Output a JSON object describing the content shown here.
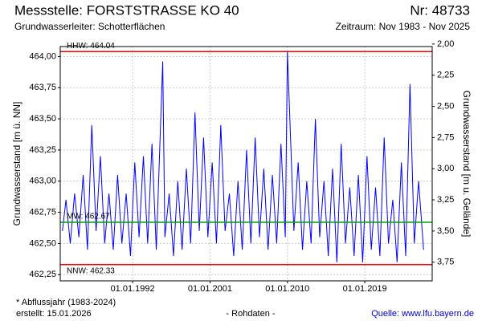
{
  "chart_data": {
    "type": "line",
    "title": "Messstelle: FORSTSTRASSE KO 40",
    "number": "Nr: 48733",
    "aquifer": "Grundwasserleiter:  Schotterflächen",
    "period": "Zeitraum: Nov 1983 - Nov 2025",
    "ylabel": "Grundwasserstand [m ü. NN]",
    "y2label": "Grundwasserstand [m u. Gelände]",
    "xlim": [
      "01.08.1983",
      "01.11.2026"
    ],
    "ylim": [
      462.2,
      464.08
    ],
    "y2lim": [
      3.9,
      2.02
    ],
    "xticks": [
      "01.01.1992",
      "01.01.2001",
      "01.01.2010",
      "01.01.2019"
    ],
    "yticks": [
      {
        "value": 462.25,
        "label": "462,25"
      },
      {
        "value": 462.5,
        "label": "462,50"
      },
      {
        "value": 462.75,
        "label": "462,75"
      },
      {
        "value": 463.0,
        "label": "463,00"
      },
      {
        "value": 463.25,
        "label": "463,25"
      },
      {
        "value": 463.5,
        "label": "463,50"
      },
      {
        "value": 463.75,
        "label": "463,75"
      },
      {
        "value": 464.0,
        "label": "464,00"
      }
    ],
    "y2ticks": [
      {
        "value": 2.0,
        "label": "2,00"
      },
      {
        "value": 2.25,
        "label": "2,25"
      },
      {
        "value": 2.5,
        "label": "2,50"
      },
      {
        "value": 2.75,
        "label": "2,75"
      },
      {
        "value": 3.0,
        "label": "3,00"
      },
      {
        "value": 3.25,
        "label": "3,25"
      },
      {
        "value": 3.5,
        "label": "3,50"
      },
      {
        "value": 3.75,
        "label": "3,75"
      }
    ],
    "grid": true,
    "reference_lines": [
      {
        "label": "HHW: 464.04",
        "value": 464.04,
        "color": "#ff0000"
      },
      {
        "label": "MW: 462.67",
        "value": 462.67,
        "color": "#00a000"
      },
      {
        "label": "NNW: 462.33",
        "value": 462.33,
        "color": "#ff0000"
      }
    ],
    "x": [
      "01.11.1983",
      "01.04.1984",
      "01.10.1984",
      "01.04.1985",
      "01.10.1985",
      "01.04.1986",
      "01.10.1986",
      "01.04.1987",
      "01.10.1987",
      "01.04.1988",
      "01.10.1988",
      "01.04.1989",
      "01.10.1989",
      "01.04.1990",
      "01.10.1990",
      "01.04.1991",
      "01.10.1991",
      "01.04.1992",
      "01.10.1992",
      "01.04.1993",
      "01.10.1993",
      "01.04.1994",
      "01.10.1994",
      "01.07.1995",
      "01.10.1995",
      "01.04.1996",
      "01.10.1996",
      "01.04.1997",
      "01.10.1997",
      "01.04.1998",
      "01.10.1998",
      "01.04.1999",
      "01.10.1999",
      "01.04.2000",
      "01.10.2000",
      "01.04.2001",
      "01.10.2001",
      "01.04.2002",
      "01.10.2002",
      "01.04.2003",
      "01.10.2003",
      "01.04.2004",
      "01.10.2004",
      "01.04.2005",
      "01.10.2005",
      "01.04.2006",
      "01.10.2006",
      "01.04.2007",
      "01.10.2007",
      "01.04.2008",
      "01.10.2008",
      "01.04.2009",
      "01.10.2009",
      "01.01.2010",
      "01.10.2010",
      "01.04.2011",
      "01.10.2011",
      "01.04.2012",
      "01.10.2012",
      "01.04.2013",
      "01.10.2013",
      "01.04.2014",
      "01.10.2014",
      "01.04.2015",
      "01.10.2015",
      "01.04.2016",
      "01.10.2016",
      "01.04.2017",
      "01.10.2017",
      "01.04.2018",
      "01.10.2018",
      "01.04.2019",
      "01.10.2019",
      "01.04.2020",
      "01.10.2020",
      "01.04.2021",
      "01.10.2021",
      "01.04.2022",
      "01.10.2022",
      "01.04.2023",
      "01.10.2023",
      "01.04.2024",
      "01.10.2024",
      "01.04.2025",
      "01.11.2025"
    ],
    "series": [
      {
        "name": "Rohdaten",
        "color": "#0000ff",
        "values": [
          462.6,
          462.85,
          462.5,
          462.9,
          462.55,
          463.05,
          462.45,
          463.45,
          462.6,
          463.2,
          462.5,
          462.9,
          462.45,
          463.05,
          462.5,
          462.9,
          462.4,
          463.15,
          462.55,
          463.2,
          462.5,
          463.3,
          462.45,
          463.96,
          462.55,
          462.9,
          462.4,
          463.0,
          462.45,
          463.1,
          462.5,
          463.55,
          462.6,
          463.35,
          462.55,
          463.15,
          462.5,
          463.45,
          462.6,
          462.9,
          462.4,
          463.0,
          462.45,
          463.25,
          462.5,
          463.35,
          462.55,
          463.1,
          462.45,
          463.05,
          462.5,
          463.3,
          462.55,
          464.04,
          462.6,
          463.15,
          462.45,
          463.0,
          462.5,
          463.5,
          462.55,
          463.0,
          462.4,
          463.1,
          462.35,
          463.3,
          462.5,
          462.95,
          462.4,
          463.05,
          462.35,
          463.2,
          462.45,
          462.95,
          462.4,
          463.35,
          462.5,
          462.85,
          462.35,
          463.15,
          462.4,
          463.78,
          462.5,
          463.0,
          462.45
        ]
      }
    ]
  },
  "footer": {
    "note": "* Abflussjahr (1983-2024)",
    "created": "erstellt:  15.01.2026",
    "raw": "- Rohdaten -",
    "source": "Quelle:  www.lfu.bayern.de"
  }
}
